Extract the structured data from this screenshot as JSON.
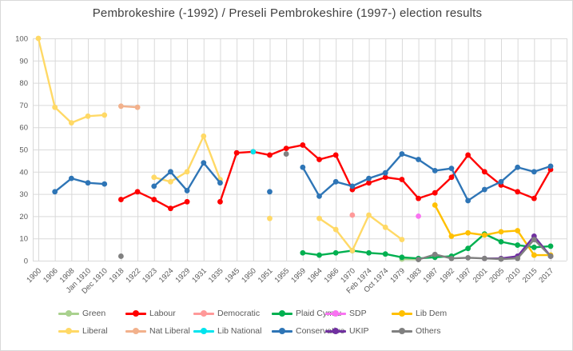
{
  "chart_data": {
    "type": "line",
    "title": "Pembrokeshire (-1992) / Preseli Pembrokeshire (1997-) election results",
    "xlabel": "",
    "ylabel": "",
    "ylim": [
      0,
      100
    ],
    "y_tick_step": 10,
    "grid": true,
    "legend_position": "bottom",
    "grid_color": "#d9d9d9",
    "axis_text_color": "#595959",
    "title_color": "#404040",
    "categories": [
      "1900",
      "1906",
      "1908",
      "Jan 1910",
      "Dec 1910",
      "1918",
      "1922",
      "1923",
      "1924",
      "1929",
      "1931",
      "1935",
      "1945",
      "1950",
      "1951",
      "1955",
      "1959",
      "1964",
      "1966",
      "1970",
      "Feb 1974",
      "Oct 1974",
      "1979",
      "1983",
      "1987",
      "1992",
      "1997",
      "2001",
      "2005",
      "2010",
      "2015",
      "2017"
    ],
    "series": [
      {
        "name": "Green",
        "color": "#a9d18e",
        "values": [
          null,
          null,
          null,
          null,
          null,
          null,
          null,
          null,
          null,
          null,
          null,
          null,
          null,
          null,
          null,
          null,
          null,
          null,
          null,
          null,
          null,
          null,
          0.7,
          0.6,
          null,
          null,
          null,
          null,
          null,
          null,
          2.5,
          null
        ]
      },
      {
        "name": "Labour",
        "color": "#ff0000",
        "values": [
          null,
          null,
          null,
          null,
          null,
          27.5,
          31,
          27.5,
          23.5,
          26.5,
          null,
          26.5,
          48.5,
          49,
          47.5,
          50.5,
          52,
          45.5,
          47.5,
          32,
          35,
          37.5,
          36.5,
          28,
          30.5,
          37.5,
          47.5,
          40,
          34,
          31,
          28,
          41
        ]
      },
      {
        "name": "Democratic",
        "color": "#ff9999",
        "values": [
          null,
          null,
          null,
          null,
          null,
          null,
          null,
          null,
          null,
          null,
          null,
          null,
          null,
          null,
          null,
          null,
          null,
          null,
          null,
          20.5,
          null,
          null,
          null,
          null,
          null,
          null,
          null,
          null,
          null,
          null,
          null,
          null
        ]
      },
      {
        "name": "Plaid Cymru",
        "color": "#00b050",
        "values": [
          null,
          null,
          null,
          null,
          null,
          null,
          null,
          null,
          null,
          null,
          null,
          null,
          null,
          null,
          null,
          null,
          3.5,
          2.5,
          3.5,
          4.5,
          3.5,
          3,
          1.5,
          1,
          1.5,
          2,
          5.5,
          12,
          8.5,
          7,
          6,
          6.5
        ]
      },
      {
        "name": "SDP",
        "color": "#f973f1",
        "values": [
          null,
          null,
          null,
          null,
          null,
          null,
          null,
          null,
          null,
          null,
          null,
          null,
          null,
          null,
          null,
          null,
          null,
          null,
          null,
          null,
          null,
          null,
          null,
          20,
          null,
          null,
          null,
          null,
          null,
          null,
          null,
          null
        ]
      },
      {
        "name": "Lib Dem",
        "color": "#ffc000",
        "values": [
          null,
          null,
          null,
          null,
          null,
          null,
          null,
          null,
          null,
          null,
          null,
          null,
          null,
          null,
          null,
          null,
          null,
          null,
          null,
          null,
          null,
          null,
          null,
          null,
          25,
          11,
          12.5,
          11.5,
          13,
          13.5,
          2.5,
          2.5
        ]
      },
      {
        "name": "Liberal",
        "color": "#ffd966",
        "values": [
          100,
          69,
          62,
          65,
          65.5,
          null,
          null,
          37.5,
          35.5,
          40,
          56,
          36.5,
          null,
          null,
          19,
          null,
          null,
          19,
          14,
          4.5,
          20.5,
          15,
          9.5,
          null,
          null,
          null,
          null,
          null,
          null,
          null,
          null,
          null
        ]
      },
      {
        "name": "Nat Liberal",
        "color": "#f2b18c",
        "values": [
          null,
          null,
          null,
          null,
          null,
          69.5,
          69,
          null,
          null,
          null,
          null,
          null,
          null,
          null,
          null,
          null,
          null,
          null,
          null,
          null,
          null,
          null,
          null,
          null,
          null,
          null,
          null,
          null,
          null,
          null,
          null,
          null
        ]
      },
      {
        "name": "Lib National",
        "color": "#00e4ee",
        "values": [
          null,
          null,
          null,
          null,
          null,
          null,
          null,
          null,
          null,
          null,
          null,
          null,
          null,
          49,
          null,
          null,
          null,
          null,
          null,
          null,
          null,
          null,
          null,
          null,
          null,
          null,
          null,
          null,
          null,
          null,
          null,
          null
        ]
      },
      {
        "name": "Conservative",
        "color": "#2e75b6",
        "values": [
          null,
          31,
          37,
          35,
          34.5,
          null,
          null,
          33.5,
          40,
          31.5,
          44,
          35,
          null,
          null,
          31,
          null,
          42,
          29,
          35.5,
          33.5,
          37,
          39.5,
          48,
          45.5,
          40.5,
          41.5,
          27,
          32,
          35.5,
          42,
          40,
          42.5
        ]
      },
      {
        "name": "UKIP",
        "color": "#7030a0",
        "values": [
          null,
          null,
          null,
          null,
          null,
          null,
          null,
          null,
          null,
          null,
          null,
          null,
          null,
          null,
          null,
          null,
          null,
          null,
          null,
          null,
          null,
          null,
          null,
          null,
          null,
          null,
          null,
          1,
          1,
          2,
          11,
          2
        ]
      },
      {
        "name": "Others",
        "color": "#808080",
        "values": [
          null,
          null,
          null,
          null,
          null,
          2,
          null,
          null,
          null,
          null,
          null,
          null,
          null,
          null,
          null,
          48,
          null,
          null,
          null,
          null,
          null,
          null,
          null,
          0.5,
          2.8,
          1,
          1.3,
          1,
          0.7,
          1,
          9.5,
          2
        ]
      }
    ],
    "legend_rows": [
      [
        0,
        1,
        2,
        3,
        4,
        5
      ],
      [
        6,
        7,
        8,
        9,
        10,
        11
      ]
    ]
  }
}
